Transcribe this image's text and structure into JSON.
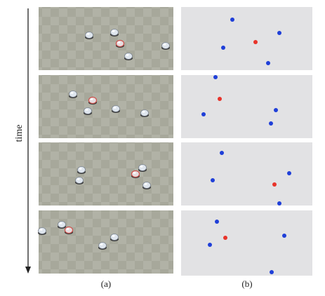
{
  "axis_label": "time",
  "panels": [
    {
      "label": "(a)"
    },
    {
      "label": "(b)"
    }
  ]
}
